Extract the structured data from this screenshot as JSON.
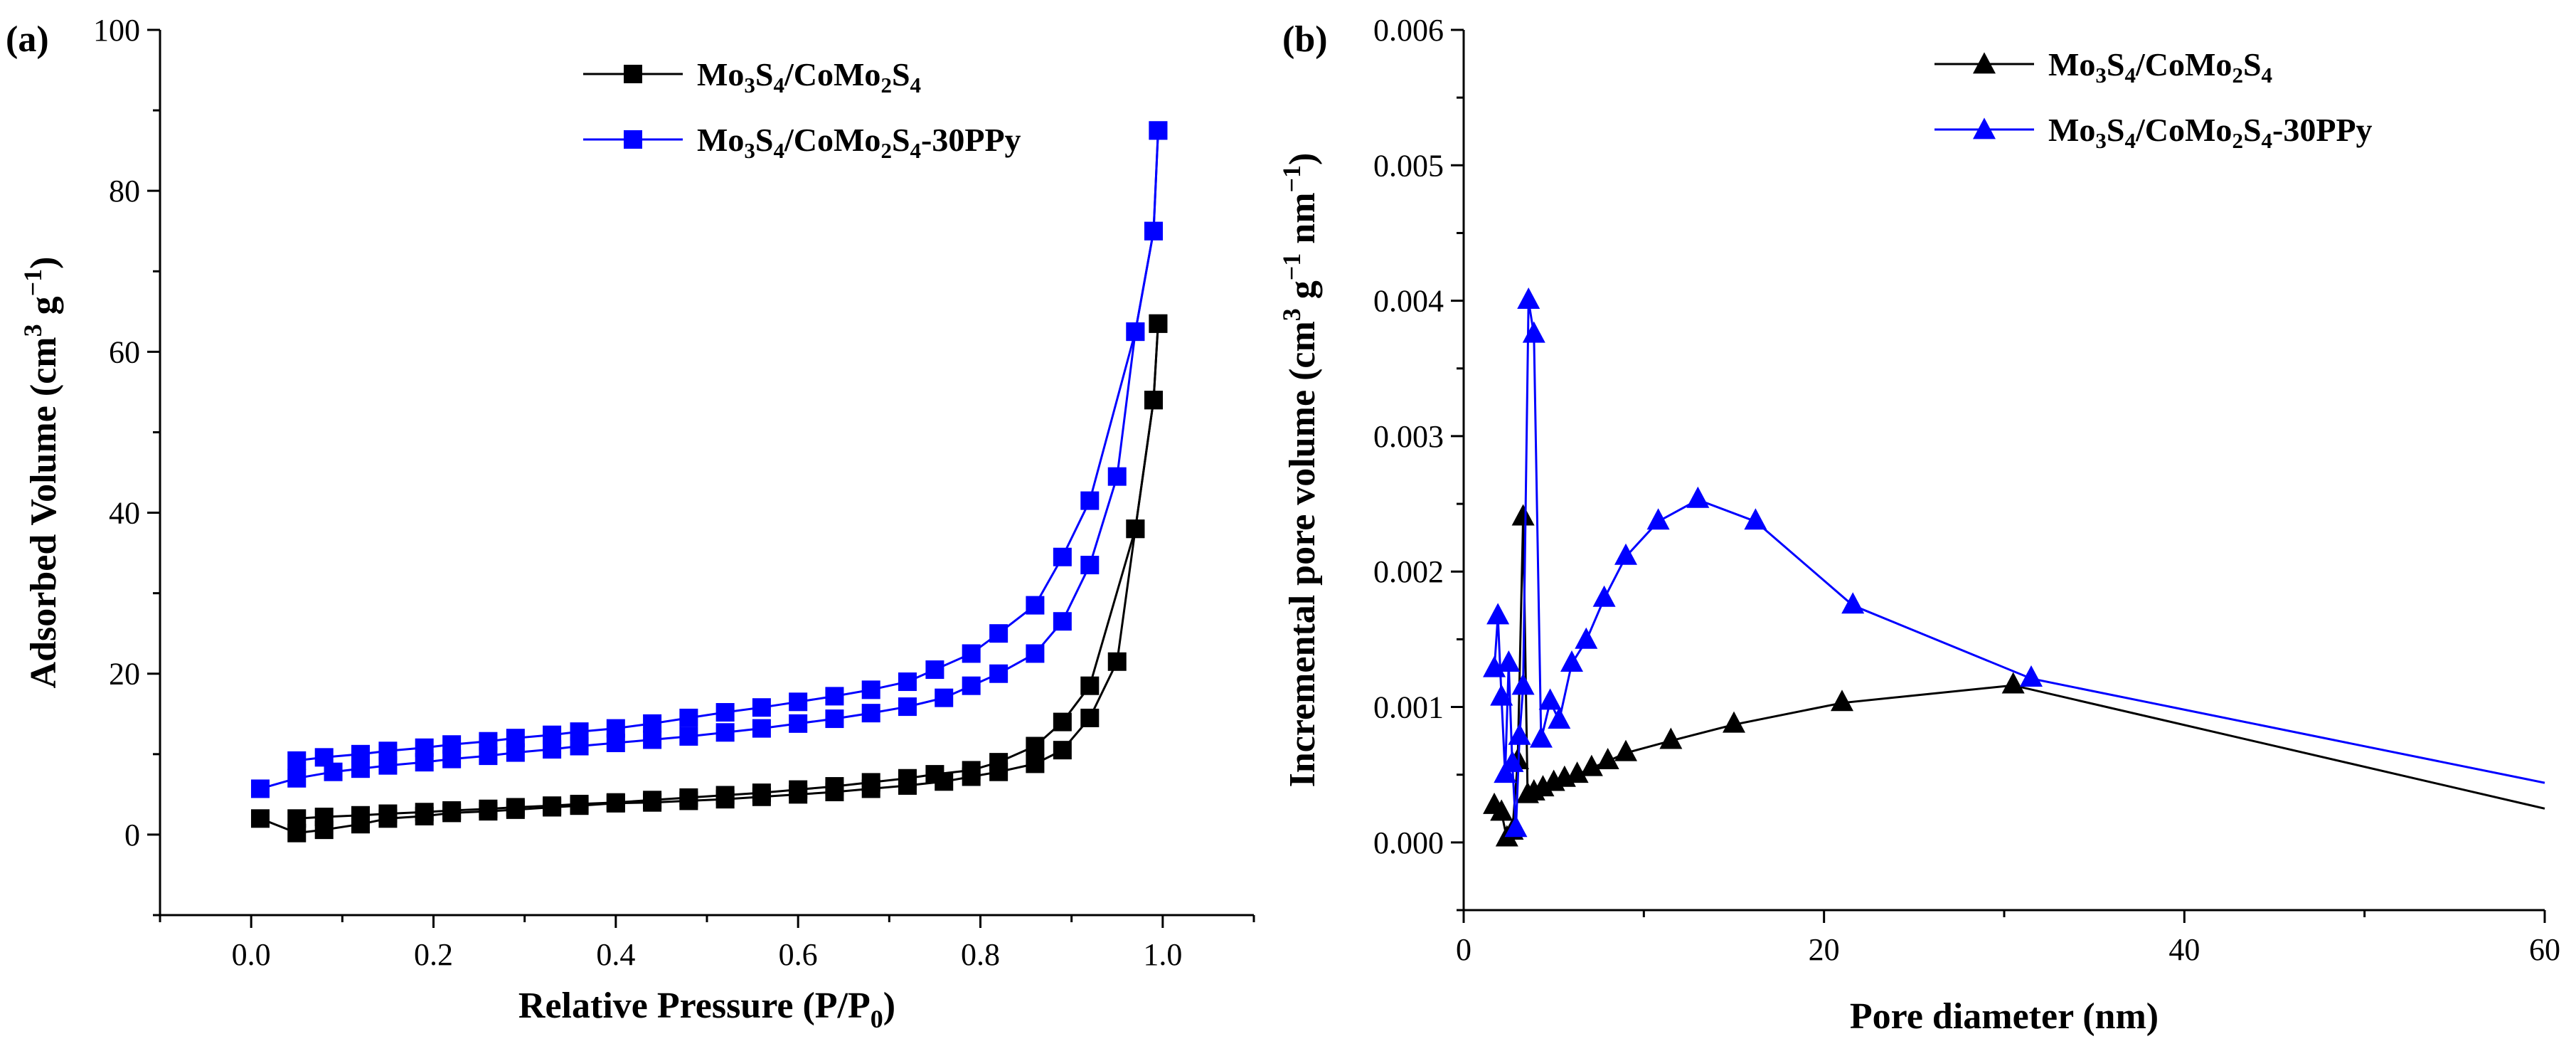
{
  "figure": {
    "panels": [
      "(a)",
      "(b)"
    ]
  },
  "chart_data": [
    {
      "type": "line",
      "panel": "(a)",
      "xlabel": "Relative Pressure (P/P",
      "xlabel_sub": "0",
      "xlabel_end": ")",
      "ylabel": "Adsorbed Volume (cm",
      "ylabel_sup1": "3",
      "ylabel_mid": " g",
      "ylabel_sup2": "−1",
      "ylabel_end": ")",
      "xlim": [
        -0.1,
        1.1
      ],
      "ylim": [
        -10,
        100
      ],
      "xticks": [
        0.0,
        0.2,
        0.4,
        0.6,
        0.8,
        1.0
      ],
      "xtick_labels": [
        "0.0",
        "0.2",
        "0.4",
        "0.6",
        "0.8",
        "1.0"
      ],
      "yticks": [
        0,
        20,
        40,
        60,
        80,
        100
      ],
      "ytick_labels": [
        "0",
        "20",
        "40",
        "60",
        "80",
        "100"
      ],
      "legend_position": "top-center",
      "series": [
        {
          "name": "Mo3S4/CoMo2S4",
          "legend_parts": [
            [
              "Mo",
              ""
            ],
            [
              "3",
              "sub"
            ],
            [
              "S",
              ""
            ],
            [
              "4",
              "sub"
            ],
            [
              "/CoMo",
              ""
            ],
            [
              "2",
              "sub"
            ],
            [
              "S",
              ""
            ],
            [
              "4",
              "sub"
            ]
          ],
          "color": "#000000",
          "marker": "square",
          "branches": [
            {
              "x": [
                0.01,
                0.05,
                0.08,
                0.12,
                0.15,
                0.19,
                0.22,
                0.26,
                0.29,
                0.33,
                0.36,
                0.4,
                0.44,
                0.48,
                0.52,
                0.56,
                0.6,
                0.64,
                0.68,
                0.72,
                0.76,
                0.79,
                0.82,
                0.86,
                0.89,
                0.92,
                0.95,
                0.97,
                0.99,
                0.995
              ],
              "y": [
                2.0,
                0.2,
                0.6,
                1.3,
                2.0,
                2.3,
                2.7,
                2.9,
                3.1,
                3.4,
                3.6,
                3.9,
                4.0,
                4.2,
                4.4,
                4.7,
                5.0,
                5.3,
                5.7,
                6.1,
                6.6,
                7.2,
                7.8,
                8.8,
                10.5,
                14.5,
                21.5,
                38.0,
                54.0,
                63.5
              ]
            },
            {
              "x": [
                0.995,
                0.99,
                0.97,
                0.92,
                0.89,
                0.86,
                0.82,
                0.79,
                0.75,
                0.72,
                0.68,
                0.64,
                0.6,
                0.56,
                0.52,
                0.48,
                0.44,
                0.4,
                0.36,
                0.33,
                0.29,
                0.26,
                0.22,
                0.19,
                0.15,
                0.12,
                0.08,
                0.05
              ],
              "y": [
                63.5,
                54.0,
                38.0,
                18.5,
                14.0,
                11.0,
                9.0,
                8.0,
                7.5,
                7.0,
                6.5,
                6.0,
                5.6,
                5.2,
                4.9,
                4.6,
                4.3,
                4.0,
                3.8,
                3.6,
                3.4,
                3.2,
                3.0,
                2.8,
                2.6,
                2.4,
                2.2,
                2.0
              ]
            }
          ]
        },
        {
          "name": "Mo3S4/CoMo2S4-30PPy",
          "legend_parts": [
            [
              "Mo",
              ""
            ],
            [
              "3",
              "sub"
            ],
            [
              "S",
              ""
            ],
            [
              "4",
              "sub"
            ],
            [
              "/CoMo",
              ""
            ],
            [
              "2",
              "sub"
            ],
            [
              "S",
              ""
            ],
            [
              "4",
              "sub"
            ],
            [
              "-30PPy",
              ""
            ]
          ],
          "color": "#0000ff",
          "marker": "square",
          "branches": [
            {
              "x": [
                0.01,
                0.05,
                0.09,
                0.12,
                0.15,
                0.19,
                0.22,
                0.26,
                0.29,
                0.33,
                0.36,
                0.4,
                0.44,
                0.48,
                0.52,
                0.56,
                0.6,
                0.64,
                0.68,
                0.72,
                0.76,
                0.79,
                0.82,
                0.86,
                0.89,
                0.92,
                0.95,
                0.97,
                0.99,
                0.995
              ],
              "y": [
                5.7,
                7.0,
                7.8,
                8.2,
                8.6,
                9.0,
                9.4,
                9.8,
                10.2,
                10.6,
                11.0,
                11.4,
                11.8,
                12.2,
                12.7,
                13.2,
                13.8,
                14.4,
                15.1,
                15.9,
                17.0,
                18.5,
                20.0,
                22.5,
                26.5,
                33.5,
                44.5,
                62.5,
                75.0,
                87.5
              ]
            },
            {
              "x": [
                0.995,
                0.99,
                0.97,
                0.92,
                0.89,
                0.86,
                0.82,
                0.79,
                0.75,
                0.72,
                0.68,
                0.64,
                0.6,
                0.56,
                0.52,
                0.48,
                0.44,
                0.4,
                0.36,
                0.33,
                0.29,
                0.26,
                0.22,
                0.19,
                0.15,
                0.12,
                0.08,
                0.05
              ],
              "y": [
                87.5,
                75.0,
                62.5,
                41.5,
                34.5,
                28.5,
                25.0,
                22.5,
                20.5,
                19.0,
                18.0,
                17.2,
                16.5,
                15.8,
                15.2,
                14.5,
                13.8,
                13.2,
                12.8,
                12.4,
                12.0,
                11.6,
                11.2,
                10.8,
                10.4,
                10.0,
                9.6,
                9.2
              ]
            }
          ]
        }
      ]
    },
    {
      "type": "line",
      "panel": "(b)",
      "xlabel": "Pore diameter (nm)",
      "ylabel": "Incremental pore volume (cm",
      "ylabel_sup1": "3",
      "ylabel_mid": " g",
      "ylabel_sup2": "−1",
      "ylabel_mid2": " nm",
      "ylabel_sup3": "−1",
      "ylabel_end": ")",
      "xlim": [
        0,
        60
      ],
      "ylim": [
        -0.0005,
        0.006
      ],
      "xticks": [
        0,
        20,
        40,
        60
      ],
      "xtick_labels": [
        "0",
        "20",
        "40",
        "60"
      ],
      "yticks": [
        0.0,
        0.001,
        0.002,
        0.003,
        0.004,
        0.005,
        0.006
      ],
      "ytick_labels": [
        "0.000",
        "0.001",
        "0.002",
        "0.003",
        "0.004",
        "0.005",
        "0.006"
      ],
      "legend_position": "top-center",
      "series": [
        {
          "name": "Mo3S4/CoMo2S4",
          "legend_parts": [
            [
              "Mo",
              ""
            ],
            [
              "3",
              "sub"
            ],
            [
              "S",
              ""
            ],
            [
              "4",
              "sub"
            ],
            [
              "/CoMo",
              ""
            ],
            [
              "2",
              "sub"
            ],
            [
              "S",
              ""
            ],
            [
              "4",
              "sub"
            ]
          ],
          "color": "#000000",
          "marker": "triangle",
          "branches": [
            {
              "x": [
                1.7,
                2.1,
                2.4,
                2.7,
                3.0,
                3.3,
                3.55,
                3.9,
                4.4,
                5.0,
                5.6,
                6.3,
                7.1,
                8.0,
                9.0,
                11.5,
                15.0,
                21.0,
                30.5,
                60.0
              ],
              "y": [
                0.00027,
                0.00022,
                3e-05,
                8e-05,
                0.0006,
                0.0024,
                0.00035,
                0.00037,
                0.0004,
                0.00044,
                0.00047,
                0.0005,
                0.00055,
                0.0006,
                0.00066,
                0.00075,
                0.00087,
                0.00103,
                0.00116,
                0.00025
              ]
            }
          ],
          "marker_count": 19
        },
        {
          "name": "Mo3S4/CoMo2S4-30PPy",
          "legend_parts": [
            [
              "Mo",
              ""
            ],
            [
              "3",
              "sub"
            ],
            [
              "S",
              ""
            ],
            [
              "4",
              "sub"
            ],
            [
              "/CoMo",
              ""
            ],
            [
              "2",
              "sub"
            ],
            [
              "S",
              ""
            ],
            [
              "4",
              "sub"
            ],
            [
              "-30PPy",
              ""
            ]
          ],
          "color": "#0000ff",
          "marker": "triangle",
          "branches": [
            {
              "x": [
                1.7,
                1.9,
                2.1,
                2.3,
                2.5,
                2.7,
                2.9,
                3.1,
                3.3,
                3.6,
                3.9,
                4.3,
                4.8,
                5.3,
                6.0,
                6.8,
                7.8,
                9.0,
                10.8,
                13.0,
                16.2,
                21.6,
                31.5,
                60.0
              ],
              "y": [
                0.00128,
                0.00167,
                0.00107,
                0.0005,
                0.00132,
                0.00058,
                0.0001,
                0.00078,
                0.00115,
                0.004,
                0.00375,
                0.00076,
                0.00104,
                0.0009,
                0.00132,
                0.00149,
                0.0018,
                0.00211,
                0.00237,
                0.00253,
                0.00237,
                0.00175,
                0.00121,
                0.00044
              ]
            }
          ],
          "marker_count": 23
        }
      ]
    }
  ]
}
